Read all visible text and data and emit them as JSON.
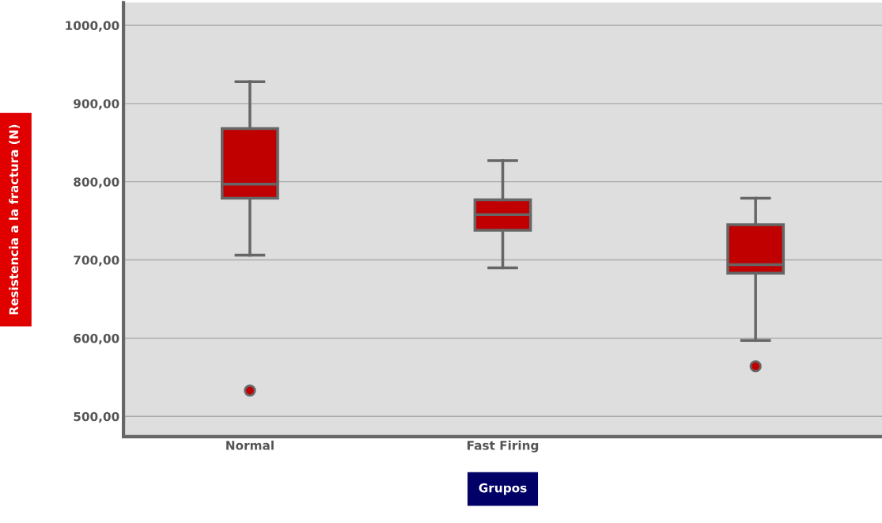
{
  "chart_data": {
    "type": "box",
    "xlabel": "Grupos",
    "ylabel": "Resistencia a la fractura (N)",
    "categories": [
      "Normal",
      "Fast Firing",
      null
    ],
    "boxes": [
      {
        "low": 706,
        "q1": 779,
        "median": 797,
        "q3": 868,
        "high": 928,
        "outliers": [
          533
        ]
      },
      {
        "low": 690,
        "q1": 738,
        "median": 758,
        "q3": 777,
        "high": 827
      },
      {
        "low": 597,
        "q1": 683,
        "median": 694,
        "q3": 745,
        "high": 779,
        "outliers": [
          564
        ]
      }
    ],
    "color": "#c00000",
    "ylim": [
      474,
      1029
    ],
    "yticks": [
      {
        "value": 500,
        "label": "500,00"
      },
      {
        "value": 600,
        "label": "600,00"
      },
      {
        "value": 700,
        "label": "700,00"
      },
      {
        "value": 800,
        "label": "800,00"
      },
      {
        "value": 900,
        "label": "900,00"
      },
      {
        "value": 1000,
        "label": "1000,00"
      }
    ],
    "grid": "y",
    "legend": false
  }
}
